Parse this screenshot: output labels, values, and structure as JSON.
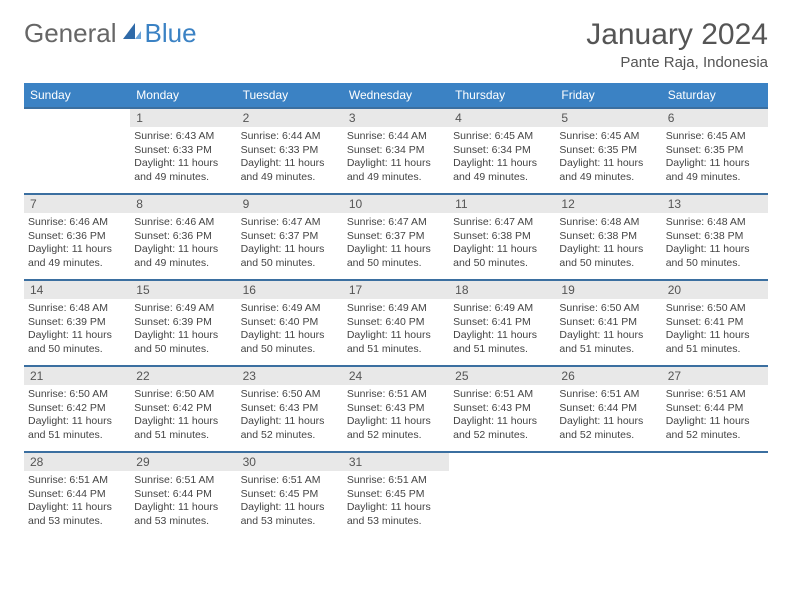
{
  "brand": {
    "part1": "General",
    "part2": "Blue"
  },
  "header": {
    "title": "January 2024",
    "location": "Pante Raja, Indonesia"
  },
  "colors": {
    "accent": "#3b82c4",
    "row_border": "#3b6fa0",
    "daynum_bg": "#e8e8e8",
    "text": "#444444",
    "title": "#555555",
    "bg": "#ffffff"
  },
  "dow": [
    "Sunday",
    "Monday",
    "Tuesday",
    "Wednesday",
    "Thursday",
    "Friday",
    "Saturday"
  ],
  "start_offset": 1,
  "days": [
    {
      "n": "1",
      "sr": "6:43 AM",
      "ss": "6:33 PM",
      "dl": "11 hours and 49 minutes."
    },
    {
      "n": "2",
      "sr": "6:44 AM",
      "ss": "6:33 PM",
      "dl": "11 hours and 49 minutes."
    },
    {
      "n": "3",
      "sr": "6:44 AM",
      "ss": "6:34 PM",
      "dl": "11 hours and 49 minutes."
    },
    {
      "n": "4",
      "sr": "6:45 AM",
      "ss": "6:34 PM",
      "dl": "11 hours and 49 minutes."
    },
    {
      "n": "5",
      "sr": "6:45 AM",
      "ss": "6:35 PM",
      "dl": "11 hours and 49 minutes."
    },
    {
      "n": "6",
      "sr": "6:45 AM",
      "ss": "6:35 PM",
      "dl": "11 hours and 49 minutes."
    },
    {
      "n": "7",
      "sr": "6:46 AM",
      "ss": "6:36 PM",
      "dl": "11 hours and 49 minutes."
    },
    {
      "n": "8",
      "sr": "6:46 AM",
      "ss": "6:36 PM",
      "dl": "11 hours and 49 minutes."
    },
    {
      "n": "9",
      "sr": "6:47 AM",
      "ss": "6:37 PM",
      "dl": "11 hours and 50 minutes."
    },
    {
      "n": "10",
      "sr": "6:47 AM",
      "ss": "6:37 PM",
      "dl": "11 hours and 50 minutes."
    },
    {
      "n": "11",
      "sr": "6:47 AM",
      "ss": "6:38 PM",
      "dl": "11 hours and 50 minutes."
    },
    {
      "n": "12",
      "sr": "6:48 AM",
      "ss": "6:38 PM",
      "dl": "11 hours and 50 minutes."
    },
    {
      "n": "13",
      "sr": "6:48 AM",
      "ss": "6:38 PM",
      "dl": "11 hours and 50 minutes."
    },
    {
      "n": "14",
      "sr": "6:48 AM",
      "ss": "6:39 PM",
      "dl": "11 hours and 50 minutes."
    },
    {
      "n": "15",
      "sr": "6:49 AM",
      "ss": "6:39 PM",
      "dl": "11 hours and 50 minutes."
    },
    {
      "n": "16",
      "sr": "6:49 AM",
      "ss": "6:40 PM",
      "dl": "11 hours and 50 minutes."
    },
    {
      "n": "17",
      "sr": "6:49 AM",
      "ss": "6:40 PM",
      "dl": "11 hours and 51 minutes."
    },
    {
      "n": "18",
      "sr": "6:49 AM",
      "ss": "6:41 PM",
      "dl": "11 hours and 51 minutes."
    },
    {
      "n": "19",
      "sr": "6:50 AM",
      "ss": "6:41 PM",
      "dl": "11 hours and 51 minutes."
    },
    {
      "n": "20",
      "sr": "6:50 AM",
      "ss": "6:41 PM",
      "dl": "11 hours and 51 minutes."
    },
    {
      "n": "21",
      "sr": "6:50 AM",
      "ss": "6:42 PM",
      "dl": "11 hours and 51 minutes."
    },
    {
      "n": "22",
      "sr": "6:50 AM",
      "ss": "6:42 PM",
      "dl": "11 hours and 51 minutes."
    },
    {
      "n": "23",
      "sr": "6:50 AM",
      "ss": "6:43 PM",
      "dl": "11 hours and 52 minutes."
    },
    {
      "n": "24",
      "sr": "6:51 AM",
      "ss": "6:43 PM",
      "dl": "11 hours and 52 minutes."
    },
    {
      "n": "25",
      "sr": "6:51 AM",
      "ss": "6:43 PM",
      "dl": "11 hours and 52 minutes."
    },
    {
      "n": "26",
      "sr": "6:51 AM",
      "ss": "6:44 PM",
      "dl": "11 hours and 52 minutes."
    },
    {
      "n": "27",
      "sr": "6:51 AM",
      "ss": "6:44 PM",
      "dl": "11 hours and 52 minutes."
    },
    {
      "n": "28",
      "sr": "6:51 AM",
      "ss": "6:44 PM",
      "dl": "11 hours and 53 minutes."
    },
    {
      "n": "29",
      "sr": "6:51 AM",
      "ss": "6:44 PM",
      "dl": "11 hours and 53 minutes."
    },
    {
      "n": "30",
      "sr": "6:51 AM",
      "ss": "6:45 PM",
      "dl": "11 hours and 53 minutes."
    },
    {
      "n": "31",
      "sr": "6:51 AM",
      "ss": "6:45 PM",
      "dl": "11 hours and 53 minutes."
    }
  ],
  "labels": {
    "sunrise": "Sunrise:",
    "sunset": "Sunset:",
    "daylight": "Daylight:"
  }
}
